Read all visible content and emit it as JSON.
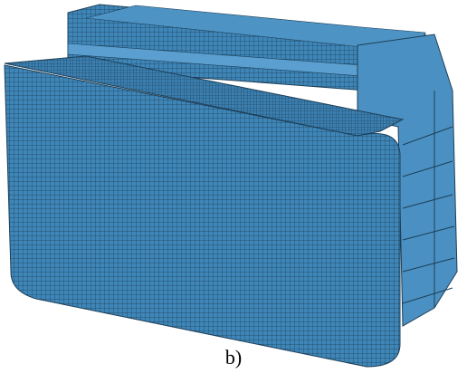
{
  "caption": "b)"
}
